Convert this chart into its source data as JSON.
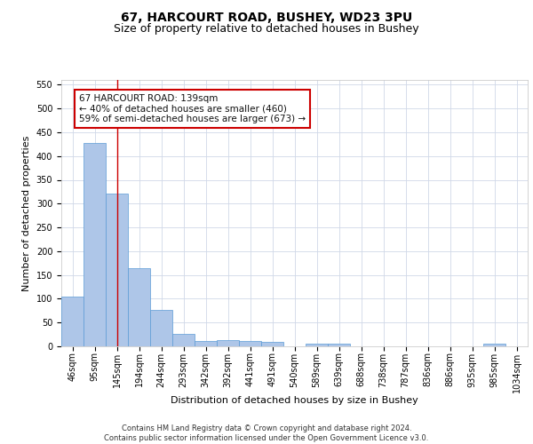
{
  "title1": "67, HARCOURT ROAD, BUSHEY, WD23 3PU",
  "title2": "Size of property relative to detached houses in Bushey",
  "xlabel": "Distribution of detached houses by size in Bushey",
  "ylabel": "Number of detached properties",
  "bin_labels": [
    "46sqm",
    "95sqm",
    "145sqm",
    "194sqm",
    "244sqm",
    "293sqm",
    "342sqm",
    "392sqm",
    "441sqm",
    "491sqm",
    "540sqm",
    "589sqm",
    "639sqm",
    "688sqm",
    "738sqm",
    "787sqm",
    "836sqm",
    "886sqm",
    "935sqm",
    "985sqm",
    "1034sqm"
  ],
  "bar_heights": [
    105,
    428,
    322,
    165,
    76,
    27,
    12,
    14,
    12,
    9,
    0,
    6,
    5,
    0,
    0,
    0,
    0,
    0,
    0,
    5,
    0
  ],
  "bar_color": "#aec6e8",
  "bar_edge_color": "#5b9bd5",
  "vline_x": 2,
  "vline_color": "#cc0000",
  "annotation_text": "67 HARCOURT ROAD: 139sqm\n← 40% of detached houses are smaller (460)\n59% of semi-detached houses are larger (673) →",
  "annotation_box_color": "#ffffff",
  "annotation_box_edge": "#cc0000",
  "ylim": [
    0,
    560
  ],
  "yticks": [
    0,
    50,
    100,
    150,
    200,
    250,
    300,
    350,
    400,
    450,
    500,
    550
  ],
  "footer_text": "Contains HM Land Registry data © Crown copyright and database right 2024.\nContains public sector information licensed under the Open Government Licence v3.0.",
  "bg_color": "#ffffff",
  "grid_color": "#d0d8e8",
  "title1_fontsize": 10,
  "title2_fontsize": 9,
  "xlabel_fontsize": 8,
  "ylabel_fontsize": 8,
  "tick_fontsize": 7,
  "annotation_fontsize": 7.5,
  "footer_fontsize": 6
}
